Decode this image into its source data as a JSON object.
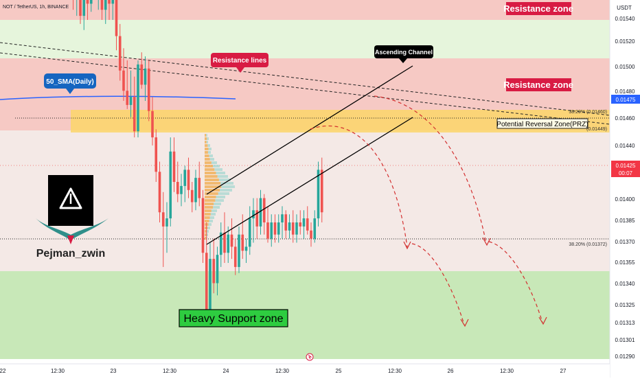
{
  "header": {
    "symbol": "NOT / TetherUS, 1h, BINANCE"
  },
  "price_axis": {
    "unit": "USDT",
    "ticks": [
      "0.01540",
      "0.01520",
      "0.01500",
      "0.01480",
      "0.01460",
      "0.01440",
      "0.01400",
      "0.01385",
      "0.01370",
      "0.01355",
      "0.01340",
      "0.01325",
      "0.01313",
      "0.01301",
      "0.01290"
    ],
    "last_price": "0.01425",
    "countdown": "00:07",
    "sma_price": "0.01475"
  },
  "time_axis": {
    "ticks": [
      "22",
      "12:30",
      "23",
      "12:30",
      "24",
      "12:30",
      "25",
      "12:30",
      "26",
      "12:30",
      "27"
    ]
  },
  "labels": {
    "resistance_zone_top": "Resistance zone",
    "resistance_zone_mid": "Resistance zone",
    "resistance_lines": "Resistance lines",
    "sma": "50_SMA(Daily)",
    "ascending_channel": "Ascending Channel",
    "prz": "Potential Reversal Zone(PRZ)",
    "fib_top": "38.20% (0.01460)",
    "fib_prz_low": "(0.01449)",
    "fib_low": "38.20% (0.01372)",
    "support": "Heavy Support zone",
    "author": "Pejman_zwin"
  },
  "colors": {
    "bull": "#26a69a",
    "bear": "#ef5350",
    "resistance_bg": "#f6c9c4",
    "support_bg": "#c8e8b8",
    "prz_bg": "#fcd66a",
    "label_red": "#d81b43",
    "label_blue": "#1565c0",
    "sma_line": "#2962ff"
  },
  "chart_data": {
    "type": "candlestick",
    "title": "NOT / TetherUS, 1h, BINANCE",
    "ylabel": "USDT",
    "ylim": [
      0.01285,
      0.01552
    ],
    "y_ticks": [
      0.0154,
      0.0152,
      0.015,
      0.0148,
      0.0146,
      0.0144,
      0.014,
      0.01385,
      0.0137,
      0.01355,
      0.0134,
      0.01325,
      0.01313,
      0.01301,
      0.0129
    ],
    "x_labels": [
      "22",
      "12:30",
      "23",
      "12:30",
      "24",
      "12:30",
      "25",
      "12:30",
      "26",
      "12:30",
      "27"
    ],
    "last_price": 0.01425,
    "sma_value": 0.01475,
    "fib_levels": [
      0.0146,
      0.01449,
      0.01372
    ],
    "candles": [
      {
        "o": 0.01556,
        "h": 0.0156,
        "l": 0.0154,
        "c": 0.01545
      },
      {
        "o": 0.01545,
        "h": 0.01558,
        "l": 0.0153,
        "c": 0.0155
      },
      {
        "o": 0.0155,
        "h": 0.01556,
        "l": 0.01525,
        "c": 0.0153
      },
      {
        "o": 0.0153,
        "h": 0.01548,
        "l": 0.01522,
        "c": 0.01542
      },
      {
        "o": 0.01542,
        "h": 0.01552,
        "l": 0.01518,
        "c": 0.01522
      },
      {
        "o": 0.01522,
        "h": 0.01545,
        "l": 0.01515,
        "c": 0.01538
      },
      {
        "o": 0.01538,
        "h": 0.01552,
        "l": 0.0152,
        "c": 0.01528
      },
      {
        "o": 0.01528,
        "h": 0.0155,
        "l": 0.01524,
        "c": 0.01545
      },
      {
        "o": 0.01545,
        "h": 0.01558,
        "l": 0.0153,
        "c": 0.01535
      },
      {
        "o": 0.01535,
        "h": 0.01545,
        "l": 0.01525,
        "c": 0.0154
      },
      {
        "o": 0.0154,
        "h": 0.01548,
        "l": 0.0152,
        "c": 0.01525
      },
      {
        "o": 0.01525,
        "h": 0.01538,
        "l": 0.01518,
        "c": 0.01532
      },
      {
        "o": 0.01532,
        "h": 0.01545,
        "l": 0.0152,
        "c": 0.01528
      },
      {
        "o": 0.01528,
        "h": 0.0154,
        "l": 0.0152,
        "c": 0.01534
      },
      {
        "o": 0.01534,
        "h": 0.01544,
        "l": 0.01505,
        "c": 0.01512
      },
      {
        "o": 0.01512,
        "h": 0.01518,
        "l": 0.0149,
        "c": 0.01495
      },
      {
        "o": 0.01495,
        "h": 0.01506,
        "l": 0.0148,
        "c": 0.01485
      },
      {
        "o": 0.01485,
        "h": 0.015,
        "l": 0.01476,
        "c": 0.01478
      },
      {
        "o": 0.01478,
        "h": 0.01495,
        "l": 0.01472,
        "c": 0.01482
      },
      {
        "o": 0.01482,
        "h": 0.01492,
        "l": 0.01462,
        "c": 0.01465
      },
      {
        "o": 0.01465,
        "h": 0.015,
        "l": 0.01462,
        "c": 0.01498
      },
      {
        "o": 0.01498,
        "h": 0.01504,
        "l": 0.01486,
        "c": 0.01488
      },
      {
        "o": 0.01488,
        "h": 0.01502,
        "l": 0.0148,
        "c": 0.01496
      },
      {
        "o": 0.01496,
        "h": 0.015,
        "l": 0.0147,
        "c": 0.01475
      },
      {
        "o": 0.01475,
        "h": 0.01482,
        "l": 0.01458,
        "c": 0.01462
      },
      {
        "o": 0.01462,
        "h": 0.01466,
        "l": 0.0144,
        "c": 0.01445
      },
      {
        "o": 0.01445,
        "h": 0.0145,
        "l": 0.0142,
        "c": 0.01425
      },
      {
        "o": 0.01425,
        "h": 0.01435,
        "l": 0.01398,
        "c": 0.01418
      },
      {
        "o": 0.01418,
        "h": 0.0143,
        "l": 0.01405,
        "c": 0.01422
      },
      {
        "o": 0.01422,
        "h": 0.01462,
        "l": 0.01418,
        "c": 0.01455
      },
      {
        "o": 0.01455,
        "h": 0.01462,
        "l": 0.01435,
        "c": 0.0144
      },
      {
        "o": 0.0144,
        "h": 0.0145,
        "l": 0.0143,
        "c": 0.01434
      },
      {
        "o": 0.01434,
        "h": 0.01444,
        "l": 0.01428,
        "c": 0.01438
      },
      {
        "o": 0.01438,
        "h": 0.01448,
        "l": 0.0143,
        "c": 0.01446
      },
      {
        "o": 0.01446,
        "h": 0.01452,
        "l": 0.01432,
        "c": 0.01436
      },
      {
        "o": 0.01436,
        "h": 0.0144,
        "l": 0.01425,
        "c": 0.0143
      },
      {
        "o": 0.0143,
        "h": 0.01446,
        "l": 0.01426,
        "c": 0.01442
      },
      {
        "o": 0.01442,
        "h": 0.0145,
        "l": 0.01428,
        "c": 0.01432
      },
      {
        "o": 0.01432,
        "h": 0.01436,
        "l": 0.014,
        "c": 0.01405
      },
      {
        "o": 0.01405,
        "h": 0.0142,
        "l": 0.01372,
        "c": 0.01374
      },
      {
        "o": 0.01374,
        "h": 0.0141,
        "l": 0.0137,
        "c": 0.01402
      },
      {
        "o": 0.01402,
        "h": 0.01412,
        "l": 0.01385,
        "c": 0.0139
      },
      {
        "o": 0.0139,
        "h": 0.01408,
        "l": 0.01384,
        "c": 0.01404
      },
      {
        "o": 0.01404,
        "h": 0.0142,
        "l": 0.01398,
        "c": 0.01415
      },
      {
        "o": 0.01415,
        "h": 0.01425,
        "l": 0.014,
        "c": 0.01405
      },
      {
        "o": 0.01405,
        "h": 0.01418,
        "l": 0.014,
        "c": 0.01414
      },
      {
        "o": 0.01414,
        "h": 0.01422,
        "l": 0.01402,
        "c": 0.01408
      },
      {
        "o": 0.01408,
        "h": 0.01412,
        "l": 0.01394,
        "c": 0.01398
      },
      {
        "o": 0.01398,
        "h": 0.01418,
        "l": 0.01395,
        "c": 0.01414
      },
      {
        "o": 0.01414,
        "h": 0.01424,
        "l": 0.01402,
        "c": 0.01406
      },
      {
        "o": 0.01406,
        "h": 0.01412,
        "l": 0.014,
        "c": 0.01408
      },
      {
        "o": 0.01408,
        "h": 0.01428,
        "l": 0.01404,
        "c": 0.01422
      },
      {
        "o": 0.01422,
        "h": 0.01432,
        "l": 0.0141,
        "c": 0.01426
      },
      {
        "o": 0.01426,
        "h": 0.01432,
        "l": 0.01412,
        "c": 0.01418
      },
      {
        "o": 0.01418,
        "h": 0.01436,
        "l": 0.01414,
        "c": 0.01432
      },
      {
        "o": 0.01432,
        "h": 0.01434,
        "l": 0.01414,
        "c": 0.0142
      },
      {
        "o": 0.0142,
        "h": 0.01428,
        "l": 0.0141,
        "c": 0.01412
      },
      {
        "o": 0.01412,
        "h": 0.01424,
        "l": 0.01408,
        "c": 0.0142
      },
      {
        "o": 0.0142,
        "h": 0.01424,
        "l": 0.0141,
        "c": 0.01414
      },
      {
        "o": 0.01414,
        "h": 0.01424,
        "l": 0.0141,
        "c": 0.0142
      },
      {
        "o": 0.0142,
        "h": 0.01428,
        "l": 0.01412,
        "c": 0.01424
      },
      {
        "o": 0.01424,
        "h": 0.01426,
        "l": 0.01412,
        "c": 0.01416
      },
      {
        "o": 0.01416,
        "h": 0.01424,
        "l": 0.01412,
        "c": 0.0142
      },
      {
        "o": 0.0142,
        "h": 0.01426,
        "l": 0.0141,
        "c": 0.01414
      },
      {
        "o": 0.01414,
        "h": 0.01424,
        "l": 0.0141,
        "c": 0.0142
      },
      {
        "o": 0.0142,
        "h": 0.01426,
        "l": 0.01414,
        "c": 0.01418
      },
      {
        "o": 0.01418,
        "h": 0.01426,
        "l": 0.01412,
        "c": 0.01422
      },
      {
        "o": 0.01422,
        "h": 0.01428,
        "l": 0.01414,
        "c": 0.01416
      },
      {
        "o": 0.01416,
        "h": 0.0142,
        "l": 0.01408,
        "c": 0.01412
      },
      {
        "o": 0.01412,
        "h": 0.01426,
        "l": 0.0141,
        "c": 0.01422
      },
      {
        "o": 0.01422,
        "h": 0.0145,
        "l": 0.01418,
        "c": 0.01446
      },
      {
        "o": 0.01446,
        "h": 0.01452,
        "l": 0.0142,
        "c": 0.01425
      }
    ]
  }
}
